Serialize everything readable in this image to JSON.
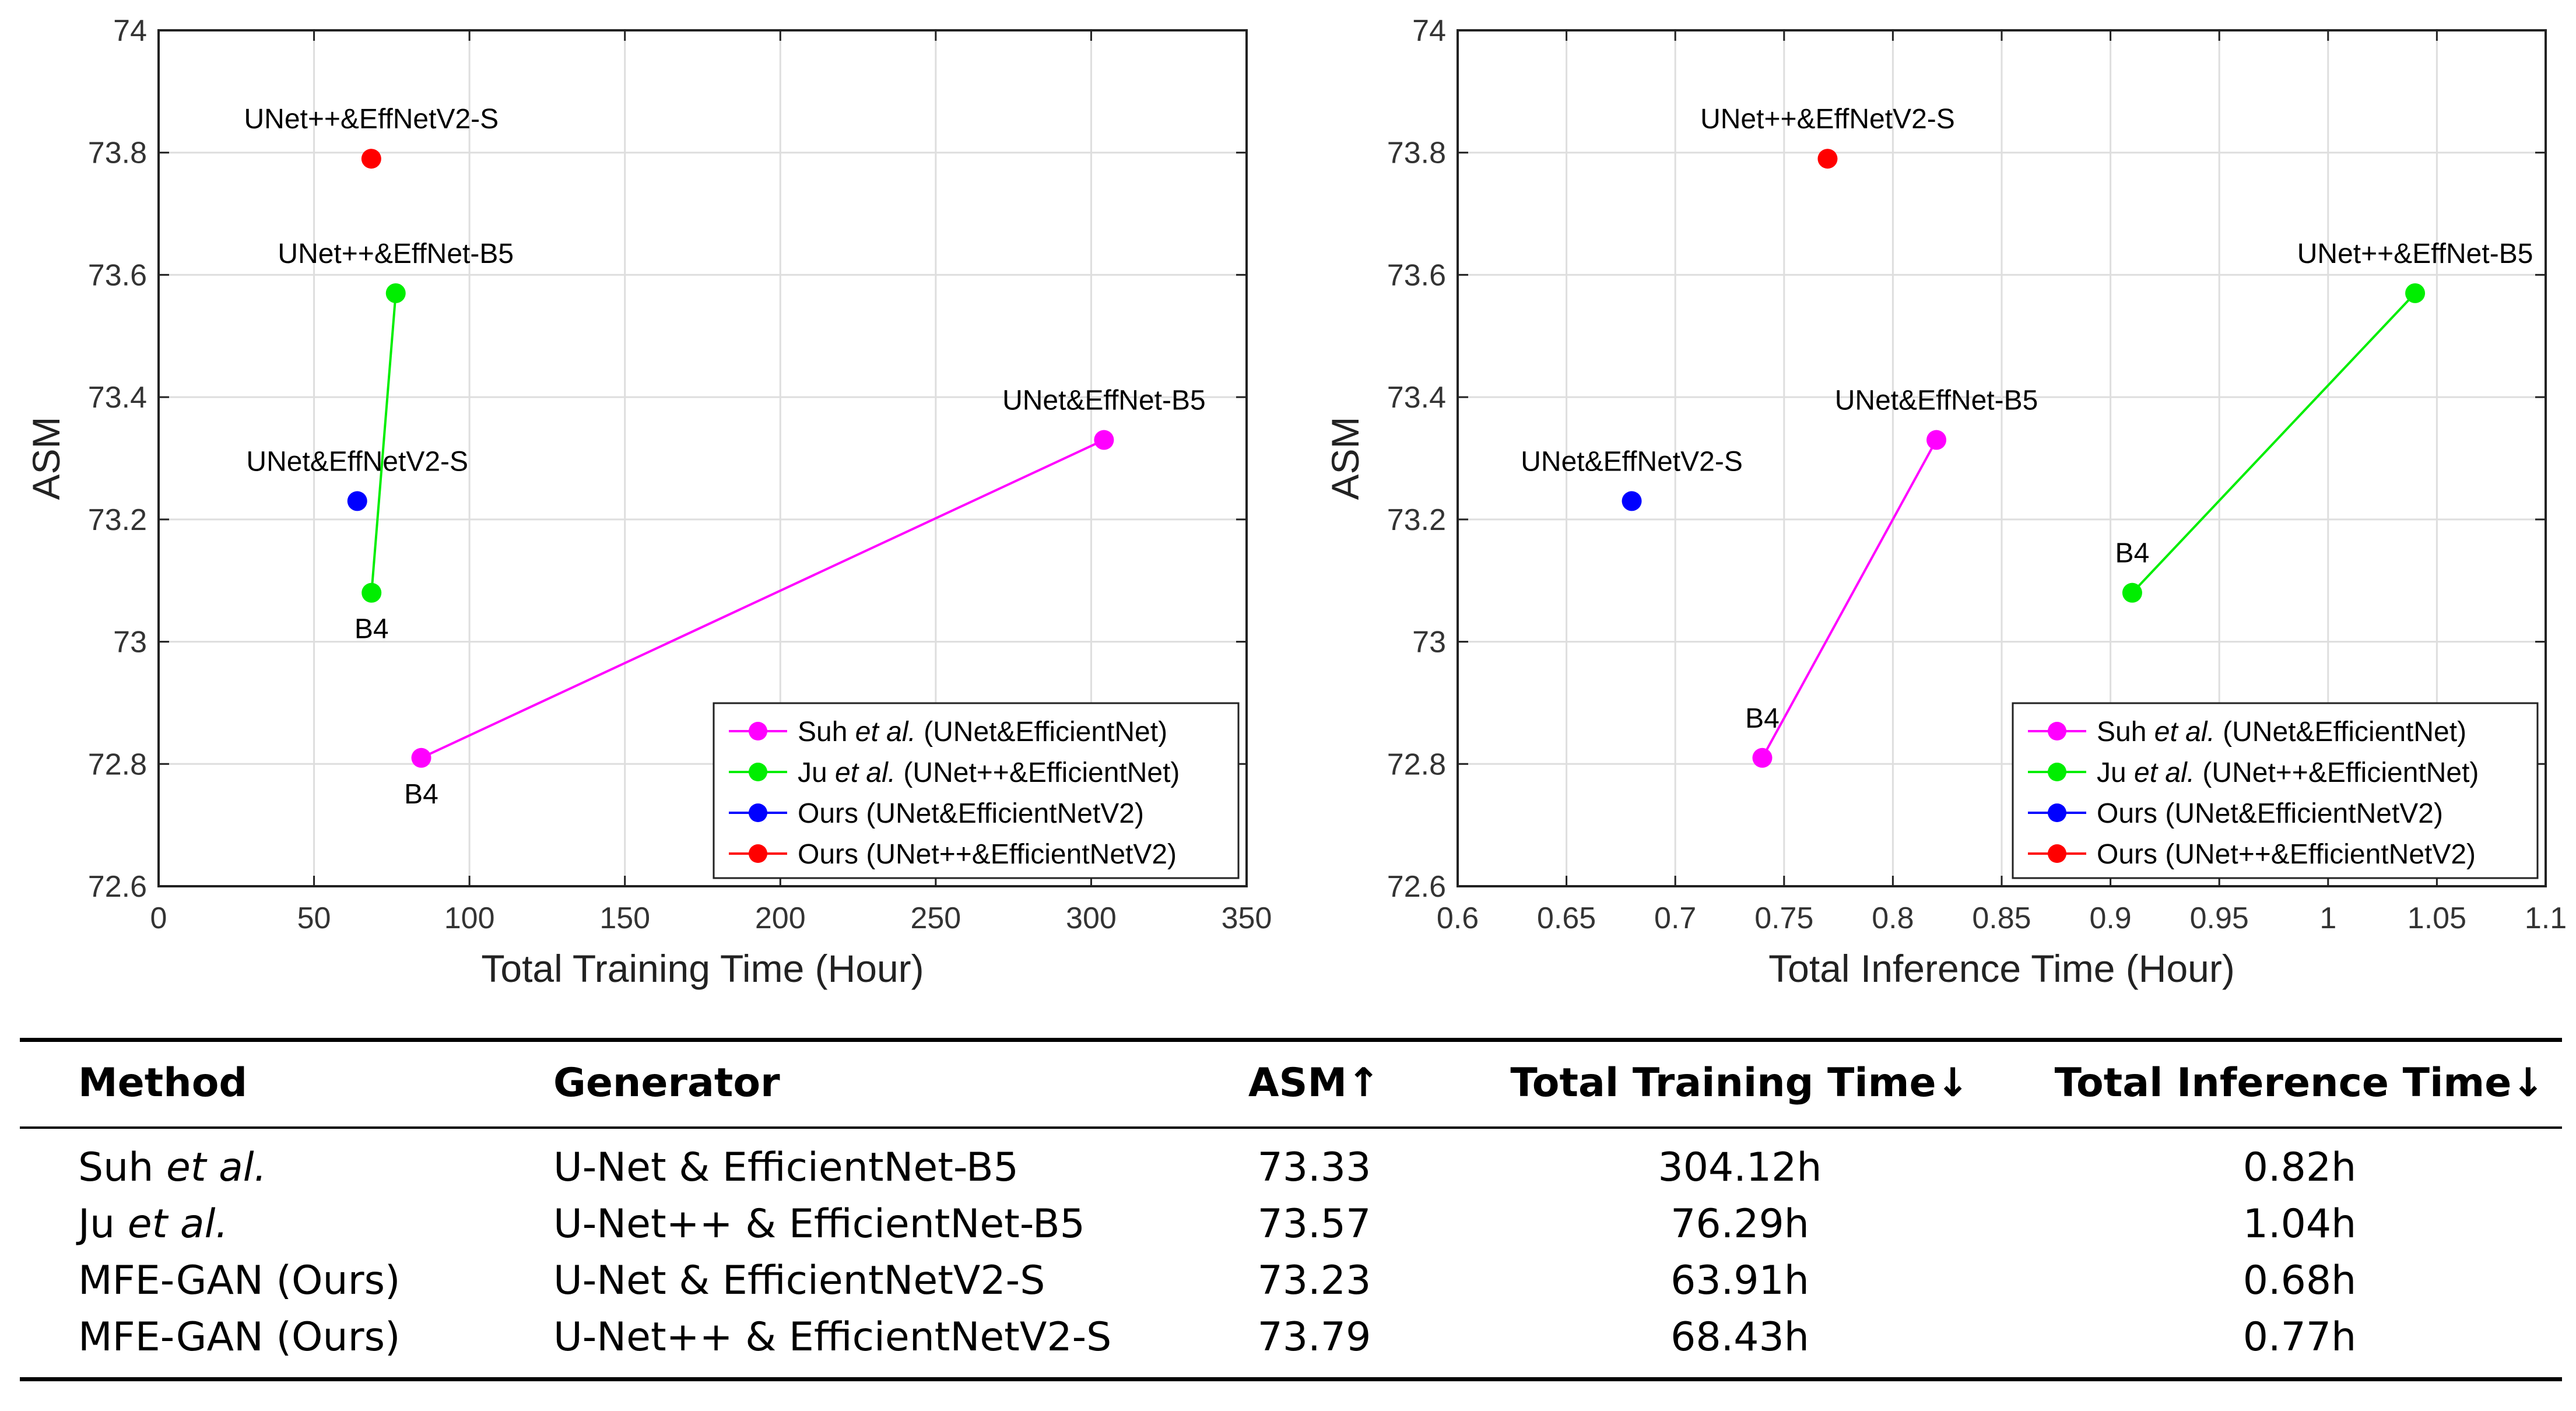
{
  "colors": {
    "suh": "#ff00ff",
    "ju": "#00ee00",
    "ours_unet": "#0000ff",
    "ours_unetpp": "#ff0000",
    "grid": "#dedede",
    "axis": "#222222"
  },
  "chart_data": [
    {
      "type": "scatter",
      "xlabel": "Total Training Time (Hour)",
      "ylabel": "ASM",
      "xlim": [
        0,
        350
      ],
      "ylim": [
        72.6,
        74
      ],
      "xticks": [
        0,
        50,
        100,
        150,
        200,
        250,
        300,
        350
      ],
      "xtick_labels": [
        "0",
        "50",
        "100",
        "150",
        "200",
        "250",
        "300",
        "350"
      ],
      "yticks": [
        72.6,
        72.8,
        73,
        73.2,
        73.4,
        73.6,
        73.8,
        74
      ],
      "ytick_labels": [
        "72.6",
        "72.8",
        "73",
        "73.2",
        "73.4",
        "73.6",
        "73.8",
        "74"
      ],
      "grid": true,
      "legend_position": "bottom-right",
      "series": [
        {
          "key": "suh",
          "legend_prefix": "Suh ",
          "legend_em": "et al.",
          "legend_suffix": " (UNet&EfficientNet)",
          "color_key": "suh",
          "points": [
            {
              "x": 84.5,
              "y": 72.81,
              "label": "B4",
              "label_pos": "below"
            },
            {
              "x": 304.12,
              "y": 73.33,
              "label": "UNet&EffNet-B5",
              "label_pos": "above"
            }
          ]
        },
        {
          "key": "ju",
          "legend_prefix": "Ju ",
          "legend_em": "et al.",
          "legend_suffix": " (UNet++&EfficientNet)",
          "color_key": "ju",
          "points": [
            {
              "x": 68.5,
              "y": 73.08,
              "label": "B4",
              "label_pos": "below"
            },
            {
              "x": 76.29,
              "y": 73.57,
              "label": "UNet++&EffNet-B5",
              "label_pos": "above"
            }
          ]
        },
        {
          "key": "ours_unet",
          "legend_prefix": "Ours (UNet&EfficientNetV2)",
          "legend_em": "",
          "legend_suffix": "",
          "color_key": "ours_unet",
          "points": [
            {
              "x": 63.91,
              "y": 73.23,
              "label": "UNet&EffNetV2-S",
              "label_pos": "above"
            }
          ]
        },
        {
          "key": "ours_unetpp",
          "legend_prefix": "Ours (UNet++&EfficientNetV2)",
          "legend_em": "",
          "legend_suffix": "",
          "color_key": "ours_unetpp",
          "points": [
            {
              "x": 68.43,
              "y": 73.79,
              "label": "UNet++&EffNetV2-S",
              "label_pos": "above"
            }
          ]
        }
      ]
    },
    {
      "type": "scatter",
      "xlabel": "Total Inference Time (Hour)",
      "ylabel": "ASM",
      "xlim": [
        0.6,
        1.1
      ],
      "ylim": [
        72.6,
        74
      ],
      "xticks": [
        0.6,
        0.65,
        0.7,
        0.75,
        0.8,
        0.85,
        0.9,
        0.95,
        1,
        1.05,
        1.1
      ],
      "xtick_labels": [
        "0.6",
        "0.65",
        "0.7",
        "0.75",
        "0.8",
        "0.85",
        "0.9",
        "0.95",
        "1",
        "1.05",
        "1.1"
      ],
      "yticks": [
        72.6,
        72.8,
        73,
        73.2,
        73.4,
        73.6,
        73.8,
        74
      ],
      "ytick_labels": [
        "72.6",
        "72.8",
        "73",
        "73.2",
        "73.4",
        "73.6",
        "73.8",
        "74"
      ],
      "grid": true,
      "legend_position": "bottom-right",
      "series": [
        {
          "key": "suh",
          "legend_prefix": "Suh ",
          "legend_em": "et al.",
          "legend_suffix": " (UNet&EfficientNet)",
          "color_key": "suh",
          "points": [
            {
              "x": 0.74,
              "y": 72.81,
              "label": "B4",
              "label_pos": "above"
            },
            {
              "x": 0.82,
              "y": 73.33,
              "label": "UNet&EffNet-B5",
              "label_pos": "above"
            }
          ]
        },
        {
          "key": "ju",
          "legend_prefix": "Ju ",
          "legend_em": "et al.",
          "legend_suffix": " (UNet++&EfficientNet)",
          "color_key": "ju",
          "points": [
            {
              "x": 0.91,
              "y": 73.08,
              "label": "B4",
              "label_pos": "above"
            },
            {
              "x": 1.04,
              "y": 73.57,
              "label": "UNet++&EffNet-B5",
              "label_pos": "above"
            }
          ]
        },
        {
          "key": "ours_unet",
          "legend_prefix": "Ours (UNet&EfficientNetV2)",
          "legend_em": "",
          "legend_suffix": "",
          "color_key": "ours_unet",
          "points": [
            {
              "x": 0.68,
              "y": 73.23,
              "label": "UNet&EffNetV2-S",
              "label_pos": "above"
            }
          ]
        },
        {
          "key": "ours_unetpp",
          "legend_prefix": "Ours (UNet++&EfficientNetV2)",
          "legend_em": "",
          "legend_suffix": "",
          "color_key": "ours_unetpp",
          "points": [
            {
              "x": 0.77,
              "y": 73.79,
              "label": "UNet++&EffNetV2-S",
              "label_pos": "above"
            }
          ]
        }
      ]
    }
  ],
  "table": {
    "headers": {
      "method": "Method",
      "generator": "Generator",
      "asm": "ASM↑",
      "train": "Total Training Time↓",
      "inference": "Total Inference Time↓"
    },
    "rows": [
      {
        "method": "Suh ",
        "method_em": "et al.",
        "generator": "U-Net & EfficientNet-B5",
        "asm": "73.33",
        "train": "304.12h",
        "inference": "0.82h"
      },
      {
        "method": "Ju ",
        "method_em": "et al.",
        "generator": "U-Net++ & EfficientNet-B5",
        "asm": "73.57",
        "train": "76.29h",
        "inference": "1.04h"
      },
      {
        "method": "MFE-GAN (Ours)",
        "method_em": "",
        "generator": "U-Net & EfficientNetV2-S",
        "asm": "73.23",
        "train": "63.91h",
        "inference": "0.68h"
      },
      {
        "method": "MFE-GAN (Ours)",
        "method_em": "",
        "generator": "U-Net++ & EfficientNetV2-S",
        "asm": "73.79",
        "train": "68.43h",
        "inference": "0.77h"
      }
    ]
  }
}
